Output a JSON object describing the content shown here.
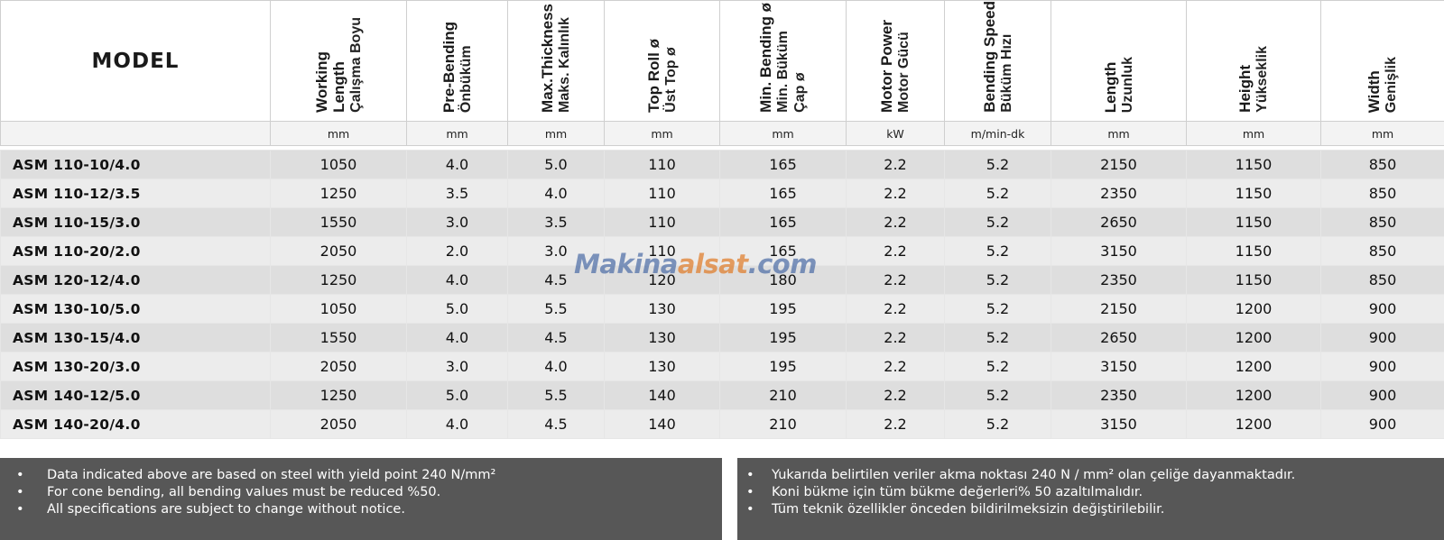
{
  "table": {
    "model_header": "MODEL",
    "columns": [
      {
        "en_lines": [
          "Working",
          "Length"
        ],
        "tr_lines": [
          "Çalışma Boyu"
        ],
        "unit": "mm"
      },
      {
        "en_lines": [
          "Pre-Bending"
        ],
        "tr_lines": [
          "Önbüküm"
        ],
        "unit": "mm"
      },
      {
        "en_lines": [
          "Max.Thickness"
        ],
        "tr_lines": [
          "Maks. Kalınlık"
        ],
        "unit": "mm"
      },
      {
        "en_lines": [
          "Top Roll ø"
        ],
        "tr_lines": [
          "Üst Top ø"
        ],
        "unit": "mm"
      },
      {
        "en_lines": [
          "Min. Bending ø"
        ],
        "tr_lines": [
          "Min. Büküm",
          "Çap ø"
        ],
        "unit": "mm"
      },
      {
        "en_lines": [
          "Motor Power"
        ],
        "tr_lines": [
          "Motor Gücü"
        ],
        "unit": "kW"
      },
      {
        "en_lines": [
          "Bending Speed"
        ],
        "tr_lines": [
          "Büküm Hızı"
        ],
        "unit": "m/min-dk"
      },
      {
        "en_lines": [
          "Length"
        ],
        "tr_lines": [
          "Uzunluk"
        ],
        "unit": "mm"
      },
      {
        "en_lines": [
          "Height"
        ],
        "tr_lines": [
          "Yükseklik"
        ],
        "unit": "mm"
      },
      {
        "en_lines": [
          "Width"
        ],
        "tr_lines": [
          "Genişlik"
        ],
        "unit": "mm"
      }
    ],
    "rows": [
      {
        "model": "ASM 110-10/4.0",
        "values": [
          "1050",
          "4.0",
          "5.0",
          "110",
          "165",
          "2.2",
          "5.2",
          "2150",
          "1150",
          "850"
        ]
      },
      {
        "model": "ASM 110-12/3.5",
        "values": [
          "1250",
          "3.5",
          "4.0",
          "110",
          "165",
          "2.2",
          "5.2",
          "2350",
          "1150",
          "850"
        ]
      },
      {
        "model": "ASM 110-15/3.0",
        "values": [
          "1550",
          "3.0",
          "3.5",
          "110",
          "165",
          "2.2",
          "5.2",
          "2650",
          "1150",
          "850"
        ]
      },
      {
        "model": "ASM 110-20/2.0",
        "values": [
          "2050",
          "2.0",
          "3.0",
          "110",
          "165",
          "2.2",
          "5.2",
          "3150",
          "1150",
          "850"
        ]
      },
      {
        "model": "ASM 120-12/4.0",
        "values": [
          "1250",
          "4.0",
          "4.5",
          "120",
          "180",
          "2.2",
          "5.2",
          "2350",
          "1150",
          "850"
        ]
      },
      {
        "model": "ASM 130-10/5.0",
        "values": [
          "1050",
          "5.0",
          "5.5",
          "130",
          "195",
          "2.2",
          "5.2",
          "2150",
          "1200",
          "900"
        ]
      },
      {
        "model": "ASM 130-15/4.0",
        "values": [
          "1550",
          "4.0",
          "4.5",
          "130",
          "195",
          "2.2",
          "5.2",
          "2650",
          "1200",
          "900"
        ]
      },
      {
        "model": "ASM 130-20/3.0",
        "values": [
          "2050",
          "3.0",
          "4.0",
          "130",
          "195",
          "2.2",
          "5.2",
          "3150",
          "1200",
          "900"
        ]
      },
      {
        "model": "ASM 140-12/5.0",
        "values": [
          "1250",
          "5.0",
          "5.5",
          "140",
          "210",
          "2.2",
          "5.2",
          "2350",
          "1200",
          "900"
        ]
      },
      {
        "model": "ASM 140-20/4.0",
        "values": [
          "2050",
          "4.0",
          "4.5",
          "140",
          "210",
          "2.2",
          "5.2",
          "3150",
          "1200",
          "900"
        ]
      }
    ]
  },
  "watermark": {
    "part1": "Makina",
    "part2": "alsat",
    "part3": ".com"
  },
  "notes_en": {
    "bullet": "•",
    "items": [
      "Data indicated above are based on steel with yield point 240 N/mm²",
      "For cone bending, all bending values must be reduced %50.",
      "All specifications are subject to change without notice."
    ]
  },
  "notes_tr": {
    "bullet": "•",
    "items": [
      "Yukarıda belirtilen veriler akma noktası 240 N / mm² olan çeliğe dayanmaktadır.",
      "Koni bükme için tüm bükme değerleri% 50 azaltılmalıdır.",
      "Tüm teknik özellikler önceden bildirilmeksizin değiştirilebilir."
    ]
  },
  "colors": {
    "row_odd": "#dedede",
    "row_even": "#ececec",
    "notes_bg": "#575757"
  }
}
